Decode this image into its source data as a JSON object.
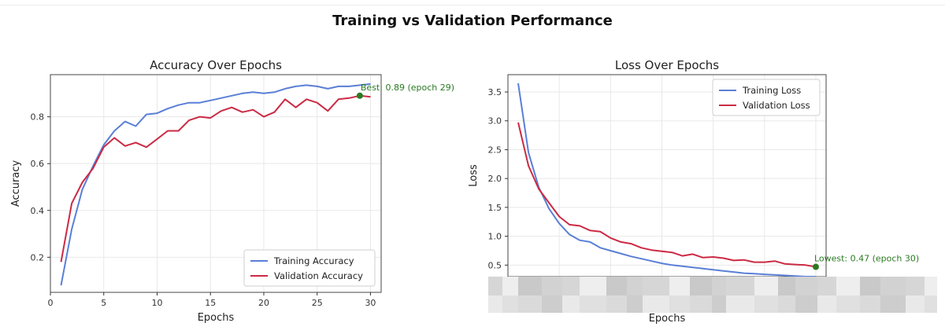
{
  "figure": {
    "title": "Training vs Validation Performance"
  },
  "chart_data": [
    {
      "type": "line",
      "title": "Accuracy Over Epochs",
      "xlabel": "Epochs",
      "ylabel": "Accuracy",
      "xlim": [
        0,
        31
      ],
      "ylim": [
        0.05,
        0.98
      ],
      "xticks": [
        0,
        5,
        10,
        15,
        20,
        25,
        30
      ],
      "yticks": [
        0.2,
        0.4,
        0.6,
        0.8
      ],
      "grid": true,
      "legend_position": "lower-right",
      "x": [
        1,
        2,
        3,
        4,
        5,
        6,
        7,
        8,
        9,
        10,
        11,
        12,
        13,
        14,
        15,
        16,
        17,
        18,
        19,
        20,
        21,
        22,
        23,
        24,
        25,
        26,
        27,
        28,
        29,
        30
      ],
      "series": [
        {
          "name": "Training Accuracy",
          "color": "#5a7fd6",
          "values": [
            0.08,
            0.32,
            0.49,
            0.59,
            0.68,
            0.74,
            0.78,
            0.76,
            0.81,
            0.815,
            0.835,
            0.85,
            0.86,
            0.86,
            0.87,
            0.88,
            0.89,
            0.9,
            0.905,
            0.9,
            0.905,
            0.92,
            0.93,
            0.935,
            0.93,
            0.92,
            0.93,
            0.93,
            0.935,
            0.94
          ]
        },
        {
          "name": "Validation Accuracy",
          "color": "#cc2a44",
          "values": [
            0.18,
            0.43,
            0.52,
            0.58,
            0.67,
            0.71,
            0.675,
            0.69,
            0.67,
            0.705,
            0.74,
            0.74,
            0.785,
            0.8,
            0.795,
            0.825,
            0.84,
            0.82,
            0.83,
            0.8,
            0.82,
            0.875,
            0.84,
            0.875,
            0.86,
            0.825,
            0.875,
            0.88,
            0.89,
            0.885
          ]
        }
      ],
      "annotation": {
        "text": "Best: 0.89 (epoch 29)",
        "x": 29,
        "y": 0.89,
        "color": "#2a7a22"
      }
    },
    {
      "type": "line",
      "title": "Loss Over Epochs",
      "xlabel": "Epochs",
      "ylabel": "Loss",
      "xlim": [
        0,
        31
      ],
      "ylim": [
        0.3,
        3.8
      ],
      "xticks": [],
      "yticks": [
        0.5,
        1.0,
        1.5,
        2.0,
        2.5,
        3.0,
        3.5
      ],
      "grid": true,
      "legend_position": "upper-right",
      "x": [
        1,
        2,
        3,
        4,
        5,
        6,
        7,
        8,
        9,
        10,
        11,
        12,
        13,
        14,
        15,
        16,
        17,
        18,
        19,
        20,
        21,
        22,
        23,
        24,
        25,
        26,
        27,
        28,
        29,
        30
      ],
      "series": [
        {
          "name": "Training Loss",
          "color": "#5a7fd6",
          "values": [
            3.65,
            2.45,
            1.85,
            1.48,
            1.22,
            1.03,
            0.93,
            0.9,
            0.8,
            0.75,
            0.7,
            0.65,
            0.61,
            0.57,
            0.53,
            0.5,
            0.48,
            0.46,
            0.44,
            0.42,
            0.4,
            0.38,
            0.36,
            0.35,
            0.34,
            0.33,
            0.32,
            0.31,
            0.3,
            0.3
          ]
        },
        {
          "name": "Validation Loss",
          "color": "#cc2a44",
          "values": [
            2.97,
            2.22,
            1.82,
            1.58,
            1.34,
            1.2,
            1.18,
            1.1,
            1.08,
            0.97,
            0.9,
            0.87,
            0.8,
            0.76,
            0.74,
            0.72,
            0.66,
            0.69,
            0.63,
            0.64,
            0.62,
            0.58,
            0.59,
            0.55,
            0.55,
            0.57,
            0.52,
            0.51,
            0.5,
            0.47
          ]
        }
      ],
      "annotation": {
        "text": "Lowest: 0.47 (epoch 30)",
        "x": 30,
        "y": 0.47,
        "color": "#2a7a22"
      }
    }
  ]
}
